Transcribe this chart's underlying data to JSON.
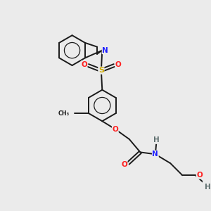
{
  "bg_color": "#ebebeb",
  "bond_color": "#1a1a1a",
  "atom_colors": {
    "N": "#2020ff",
    "O": "#ff2020",
    "S": "#ccaa00",
    "H": "#607070",
    "C": "#1a1a1a"
  },
  "lw": 1.4,
  "fontsize": 7.5
}
